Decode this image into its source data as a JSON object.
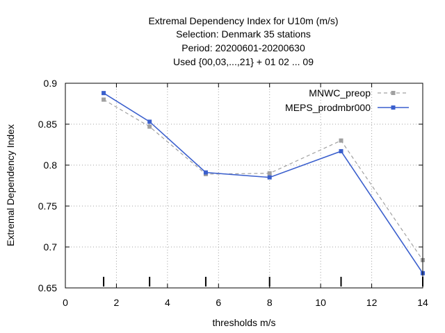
{
  "chart_data": {
    "type": "line",
    "title_lines": [
      "Extremal Dependency Index  for U10m (m/s)",
      "Selection: Denmark     35 stations",
      "Period: 20200601-20200630",
      "Used {00,03,...,21} + 01 02 ... 09"
    ],
    "xlabel": "thresholds m/s",
    "ylabel": "Extremal Dependency Index",
    "xlim": [
      0,
      14
    ],
    "ylim": [
      0.65,
      0.9
    ],
    "x_ticks": [
      0,
      2,
      4,
      6,
      8,
      10,
      12,
      14
    ],
    "y_ticks": [
      0.65,
      0.7,
      0.75,
      0.8,
      0.85,
      0.9
    ],
    "grid": true,
    "legend_position": "top-right",
    "threshold_markers": [
      1.5,
      3.3,
      5.5,
      8,
      10.8,
      14
    ],
    "series": [
      {
        "name": "MNWC_preop",
        "color": "#a0a0a0",
        "style": "dashed",
        "x": [
          1.5,
          3.3,
          5.5,
          8,
          10.8,
          14
        ],
        "y": [
          0.88,
          0.847,
          0.789,
          0.79,
          0.83,
          0.684
        ]
      },
      {
        "name": "MEPS_prodmbr000",
        "color": "#3a5fcd",
        "style": "solid",
        "x": [
          1.5,
          3.3,
          5.5,
          8,
          10.8,
          14
        ],
        "y": [
          0.888,
          0.853,
          0.791,
          0.785,
          0.817,
          0.668
        ]
      }
    ]
  }
}
